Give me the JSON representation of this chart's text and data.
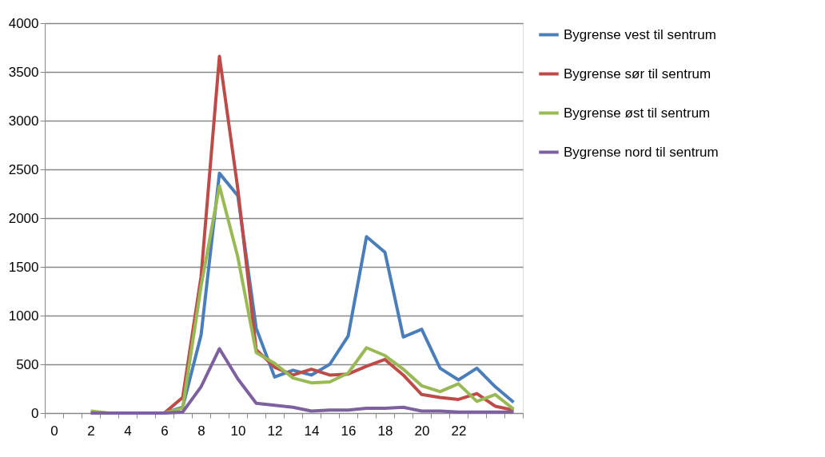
{
  "chart_data": {
    "type": "line",
    "categories": [
      "0",
      null,
      "2",
      null,
      "4",
      null,
      "6",
      null,
      "8",
      null,
      "10",
      null,
      "12",
      null,
      "14",
      null,
      "16",
      null,
      "18",
      null,
      "20",
      null,
      "22",
      null,
      null,
      null
    ],
    "series": [
      {
        "name": "Bygrense vest til sentrum",
        "color": "#4a7ebb",
        "values": [
          null,
          null,
          null,
          null,
          null,
          0,
          0,
          60,
          800,
          2460,
          2230,
          870,
          370,
          440,
          390,
          500,
          790,
          1810,
          1650,
          780,
          860,
          460,
          340,
          460,
          270,
          110
        ]
      },
      {
        "name": "Bygrense sør til sentrum",
        "color": "#be4b48",
        "values": [
          null,
          null,
          null,
          null,
          null,
          0,
          0,
          160,
          1400,
          3660,
          2300,
          650,
          470,
          390,
          450,
          390,
          400,
          480,
          550,
          390,
          190,
          160,
          140,
          200,
          70,
          30
        ]
      },
      {
        "name": "Bygrense øst til sentrum",
        "color": "#98b954",
        "values": [
          null,
          null,
          20,
          0,
          0,
          0,
          0,
          50,
          1300,
          2330,
          1600,
          620,
          510,
          360,
          310,
          320,
          410,
          670,
          590,
          450,
          280,
          220,
          300,
          120,
          190,
          40
        ]
      },
      {
        "name": "Bygrense nord til sentrum",
        "color": "#7d60a0",
        "values": [
          null,
          null,
          0,
          0,
          0,
          0,
          0,
          10,
          270,
          660,
          350,
          100,
          80,
          60,
          20,
          30,
          30,
          50,
          50,
          60,
          20,
          20,
          10,
          10,
          10,
          10
        ]
      }
    ],
    "ylim": [
      0,
      4000
    ],
    "yticks": [
      0,
      500,
      1000,
      1500,
      2000,
      2500,
      3000,
      3500,
      4000
    ],
    "grid": "y",
    "legend": "right",
    "marker": "none",
    "line_style": "solid"
  }
}
